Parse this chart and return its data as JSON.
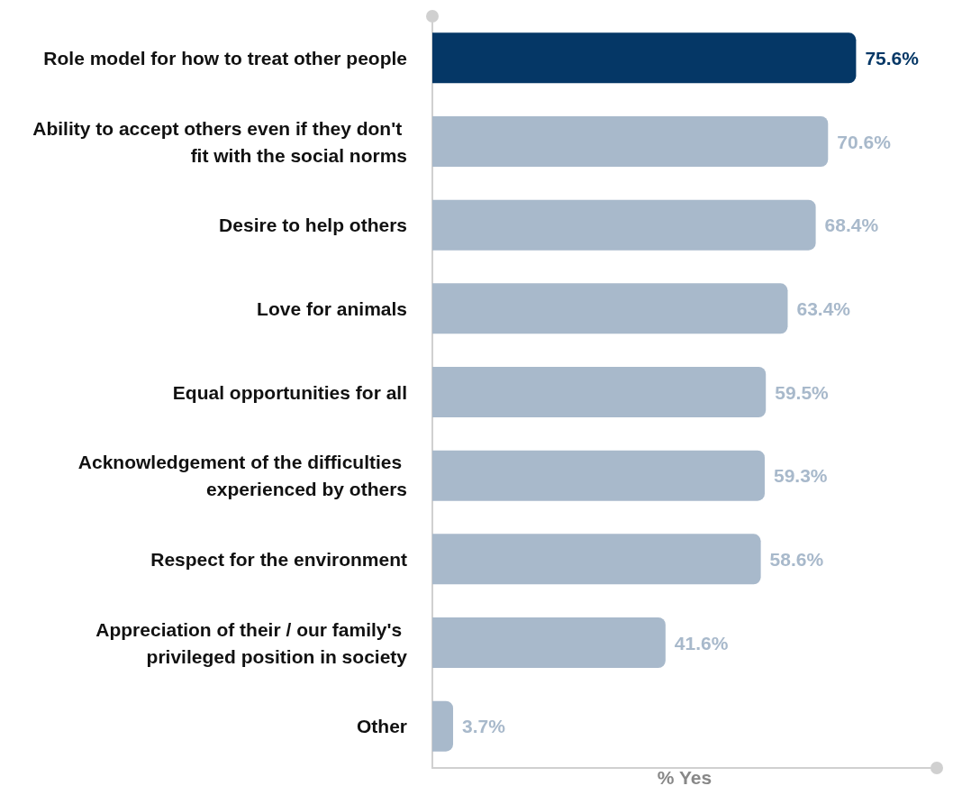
{
  "chart_data": {
    "type": "bar",
    "orientation": "horizontal",
    "xlabel": "% Yes",
    "categories": [
      "Role model for how to treat other people",
      "Ability to accept others even if they don't fit with the social norms",
      "Desire to help others",
      "Love for animals",
      "Equal opportunities for all",
      "Acknowledgement of the difficulties experienced by others",
      "Respect for the environment",
      "Appreciation of their / our family's privileged position in society",
      "Other"
    ],
    "values": [
      75.6,
      70.6,
      68.4,
      63.4,
      59.5,
      59.3,
      58.6,
      41.6,
      3.7
    ],
    "value_labels": [
      "75.6%",
      "70.6%",
      "68.4%",
      "63.4%",
      "59.5%",
      "59.3%",
      "58.6%",
      "41.6%",
      "3.7%"
    ],
    "colors": [
      "#053766",
      "#a8b9cb",
      "#a8b9cb",
      "#a8b9cb",
      "#a8b9cb",
      "#a8b9cb",
      "#a8b9cb",
      "#a8b9cb",
      "#a8b9cb"
    ],
    "xlim": [
      0,
      90
    ],
    "tick_labels": "y",
    "grid": false
  }
}
